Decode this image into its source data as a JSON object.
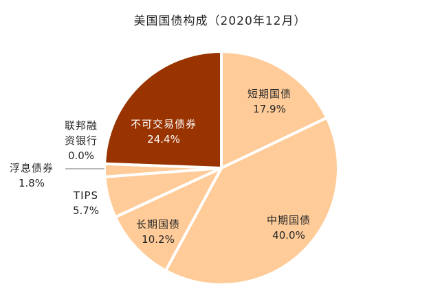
{
  "chart_data": {
    "type": "pie",
    "title": "美国国债构成（2020年12月）",
    "start_angle_deg": 0,
    "direction": "clockwise",
    "categories": [
      "短期国债",
      "中期国债",
      "长期国债",
      "TIPS",
      "浮息债券",
      "联邦融资银行",
      "不可交易债券"
    ],
    "values": [
      17.9,
      40.0,
      10.2,
      5.7,
      1.8,
      0.0,
      24.4
    ],
    "value_labels": [
      "17.9%",
      "40.0%",
      "10.2%",
      "5.7%",
      "1.8%",
      "0.0%",
      "24.4%"
    ],
    "colors": [
      "#FFCC99",
      "#FFCC99",
      "#FFCC99",
      "#FFCC99",
      "#FFCC99",
      "#FFCC99",
      "#993300"
    ],
    "slice_border_color": "#FFFFFF",
    "legend": "none",
    "data_labels": "category name and percentage"
  },
  "labels": {
    "short": {
      "name": "短期国债",
      "pct": "17.9%"
    },
    "mid": {
      "name": "中期国债",
      "pct": "40.0%"
    },
    "long": {
      "name": "长期国债",
      "pct": "10.2%"
    },
    "tips": {
      "name": "TIPS",
      "pct": "5.7%"
    },
    "floating": {
      "name": "浮息债券",
      "pct": "1.8%"
    },
    "ffb_line1": "联邦融",
    "ffb_line2": "资银行",
    "ffb_pct": "0.0%",
    "nonmarket": {
      "name": "不可交易债券",
      "pct": "24.4%"
    }
  },
  "colors": {
    "light_slice": "#FFCC99",
    "dark_slice": "#993300",
    "leader_line": "#A0A0A0"
  }
}
